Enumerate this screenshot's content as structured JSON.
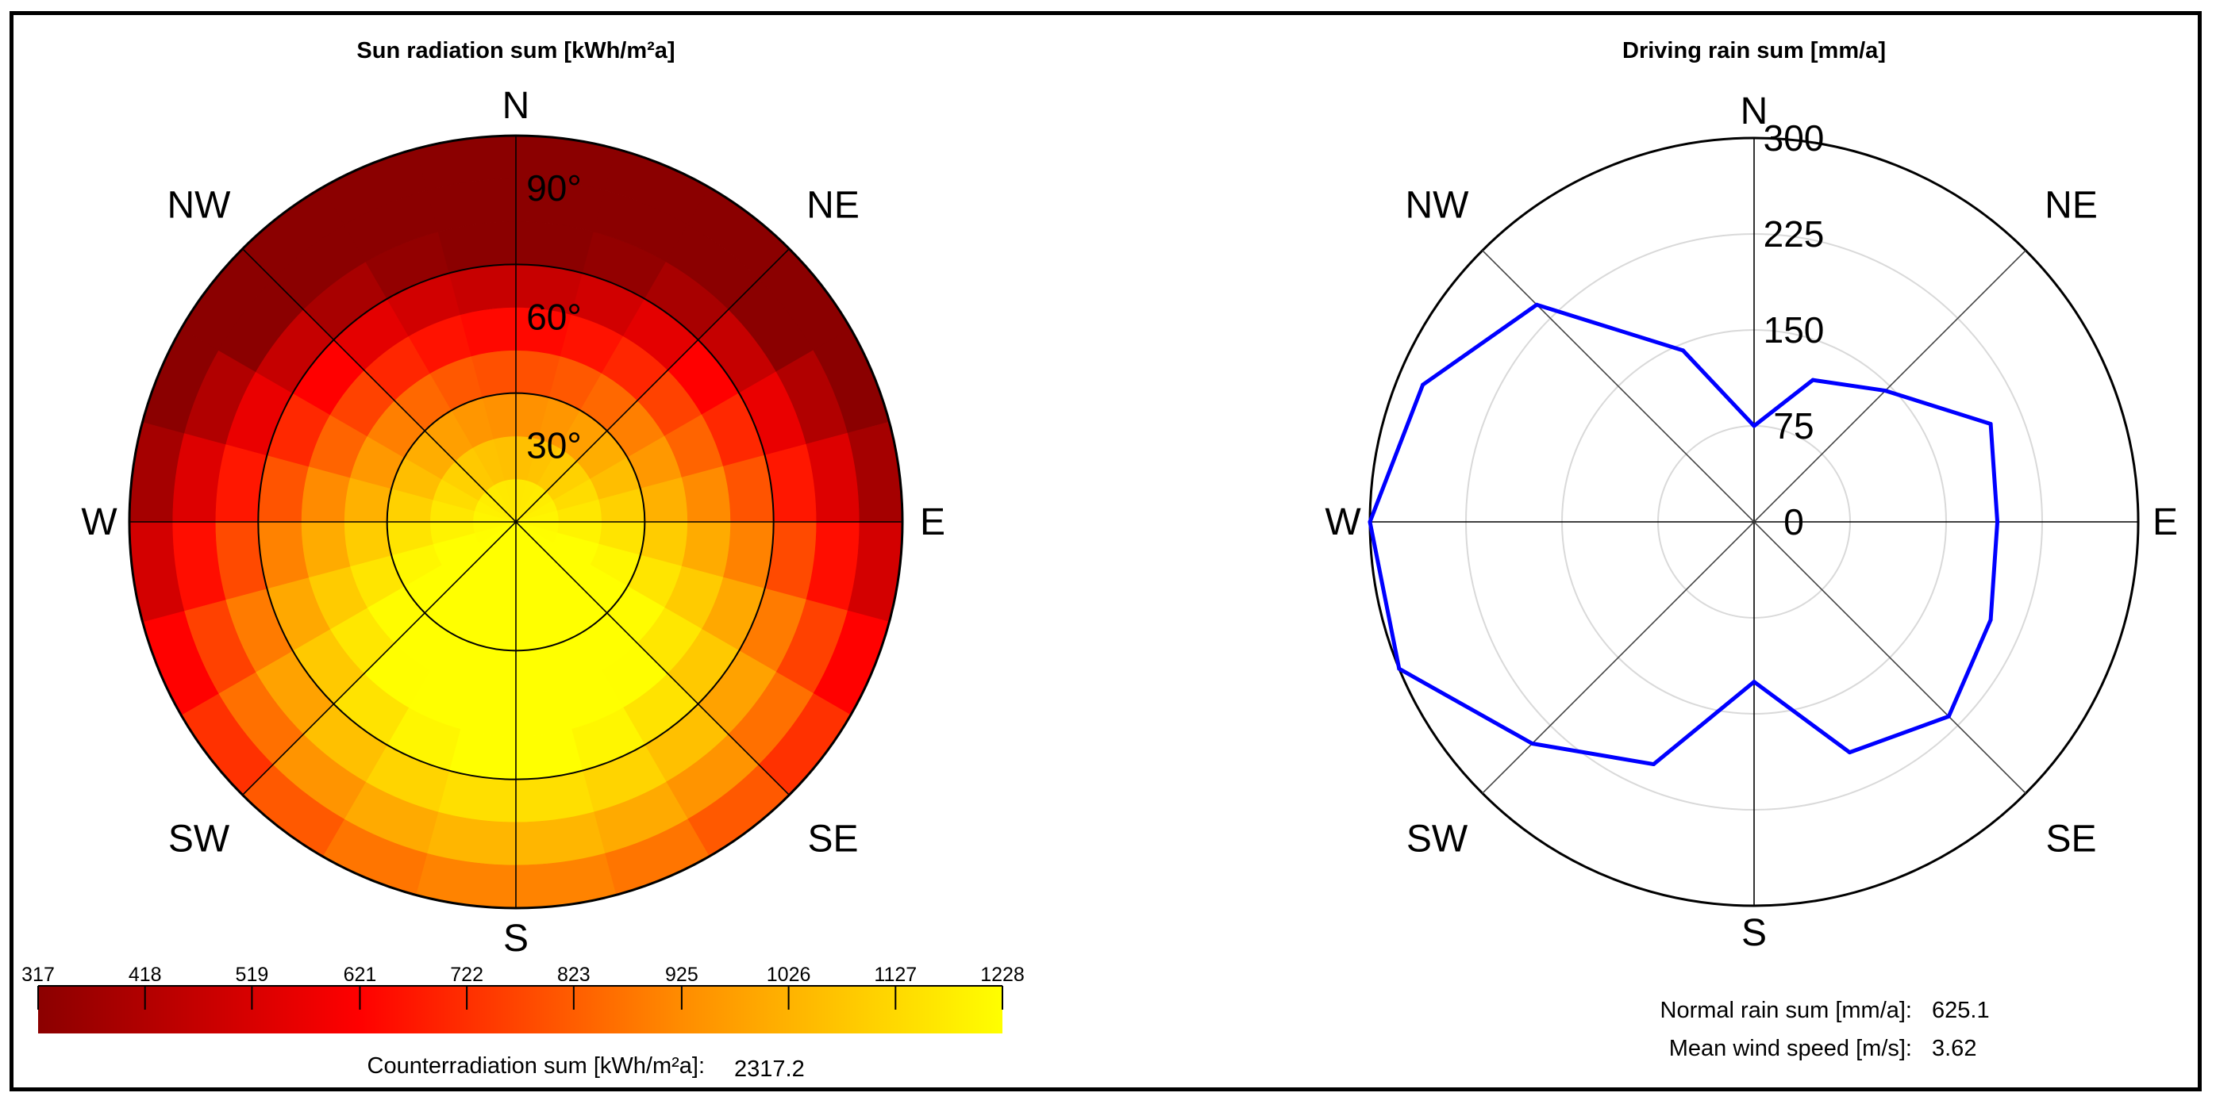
{
  "charts": {
    "sun": {
      "title": "Sun radiation sum [kWh/m²a]",
      "directions": [
        "N",
        "NE",
        "E",
        "SE",
        "S",
        "SW",
        "W",
        "NW"
      ],
      "ring_labels": [
        "30°",
        "60°",
        "90°"
      ],
      "colorbar": {
        "ticks": [
          "317",
          "418",
          "519",
          "621",
          "722",
          "823",
          "925",
          "1026",
          "1127",
          "1228"
        ],
        "min": 317,
        "max": 1228,
        "colors": [
          "#8b0000",
          "#ff0000",
          "#ff8c00",
          "#ffff00"
        ]
      },
      "footer": {
        "label": "Counterradiation sum [kWh/m²a]:",
        "value": "2317.2"
      }
    },
    "rain": {
      "title": "Driving rain sum [mm/a]",
      "directions": [
        "N",
        "NE",
        "E",
        "SE",
        "S",
        "SW",
        "W",
        "NW"
      ],
      "footer": [
        {
          "label": "Normal rain sum [mm/a]:",
          "value": "625.1"
        },
        {
          "label": "Mean wind speed [m/s]:",
          "value": "3.62"
        }
      ]
    }
  },
  "chart_data": [
    {
      "type": "heatmap",
      "title": "Sun radiation sum [kWh/m²a]",
      "polar": true,
      "angular_unit": "azimuth degrees (0 = N, clockwise)",
      "radial_axis": "inclination (degrees)",
      "radial_ticks": [
        30,
        60,
        90
      ],
      "azimuth_bins": 24,
      "inclination_bands": [
        0,
        10,
        20,
        30,
        40,
        50,
        60,
        70,
        80,
        90
      ],
      "value_range": [
        317,
        1228
      ],
      "colorbar_label": "Counterradiation sum [kWh/m²a]: 2317.2"
    },
    {
      "type": "line",
      "polar": true,
      "title": "Driving rain sum [mm/a]",
      "radial_ticks": [
        0,
        75,
        150,
        225,
        300
      ],
      "rlim": [
        0,
        300
      ],
      "theta_deg": [
        0,
        22.5,
        45,
        67.5,
        90,
        112.5,
        135,
        157.5,
        180,
        202.5,
        225,
        247.5,
        270,
        292.5,
        315,
        337.5
      ],
      "values": [
        75,
        120,
        145,
        200,
        190,
        200,
        215,
        195,
        125,
        205,
        245,
        300,
        300,
        280,
        240,
        145
      ],
      "color": "#0000ff"
    }
  ]
}
